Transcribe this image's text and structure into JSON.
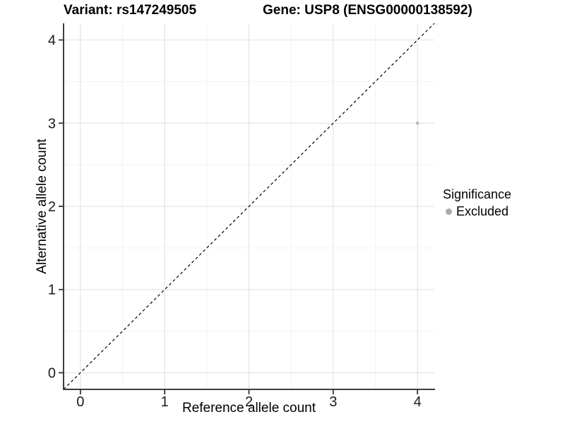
{
  "chart_data": {
    "type": "scatter",
    "title_left": "Variant: rs147249505",
    "title_right": "Gene: USP8 (ENSG00000138592)",
    "xlabel": "Reference allele count",
    "ylabel": "Alternative allele count",
    "xlim": [
      -0.2,
      4.2
    ],
    "ylim": [
      -0.2,
      4.2
    ],
    "xticks": [
      0,
      1,
      2,
      3,
      4
    ],
    "yticks": [
      0,
      1,
      2,
      3,
      4
    ],
    "xticks_minor": [
      0.5,
      1.5,
      2.5,
      3.5
    ],
    "yticks_minor": [
      0.5,
      1.5,
      2.5,
      3.5
    ],
    "grid": "major+minor",
    "reference_line": {
      "type": "identity",
      "style": "dashed",
      "color": "#000000",
      "from": [
        -0.2,
        -0.2
      ],
      "to": [
        4.2,
        4.2
      ]
    },
    "series": [
      {
        "name": "Excluded",
        "color": "#bdbdbd",
        "points": [
          {
            "x": 4,
            "y": 3
          }
        ]
      }
    ],
    "legend": {
      "title": "Significance",
      "position": "right",
      "items": [
        {
          "label": "Excluded",
          "color": "#ababab",
          "marker": "circle"
        }
      ]
    },
    "colors": {
      "grid_major": "#e4e4e4",
      "grid_minor": "#f2f2f2",
      "axis_line": "#3d3d3d",
      "tick_mark": "#333333",
      "tick_text": "#1a1a1a"
    }
  }
}
